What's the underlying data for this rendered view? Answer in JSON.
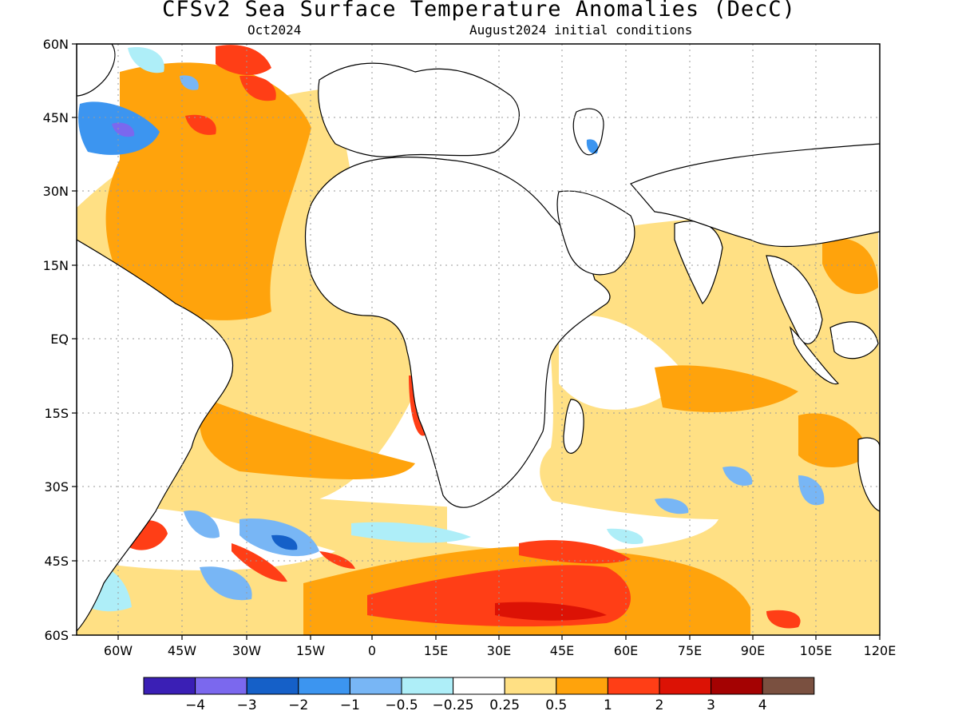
{
  "title": "CFSv2 Sea Surface Temperature Anomalies (DecC)",
  "subtitle_left": "Oct2024",
  "subtitle_right": "August2024 initial conditions",
  "lat_labels": [
    "60N",
    "45N",
    "30N",
    "15N",
    "EQ",
    "15S",
    "30S",
    "45S",
    "60S"
  ],
  "lon_labels": [
    "60W",
    "45W",
    "30W",
    "15W",
    "0",
    "15E",
    "30E",
    "45E",
    "60E",
    "75E",
    "90E",
    "105E",
    "120E"
  ],
  "colorbar": {
    "colors": [
      "#3a1fb5",
      "#7b68ee",
      "#1560c8",
      "#3c95f0",
      "#78b6f5",
      "#aeeef8",
      "#ffffff",
      "#ffe084",
      "#ffa30c",
      "#ff3e16",
      "#dc1205",
      "#a40202",
      "#7a5040"
    ],
    "labels": [
      "-4",
      "-3",
      "-2",
      "-1",
      "-0.5",
      "-0.25",
      "0.25",
      "0.5",
      "1",
      "2",
      "3",
      "4"
    ]
  }
}
